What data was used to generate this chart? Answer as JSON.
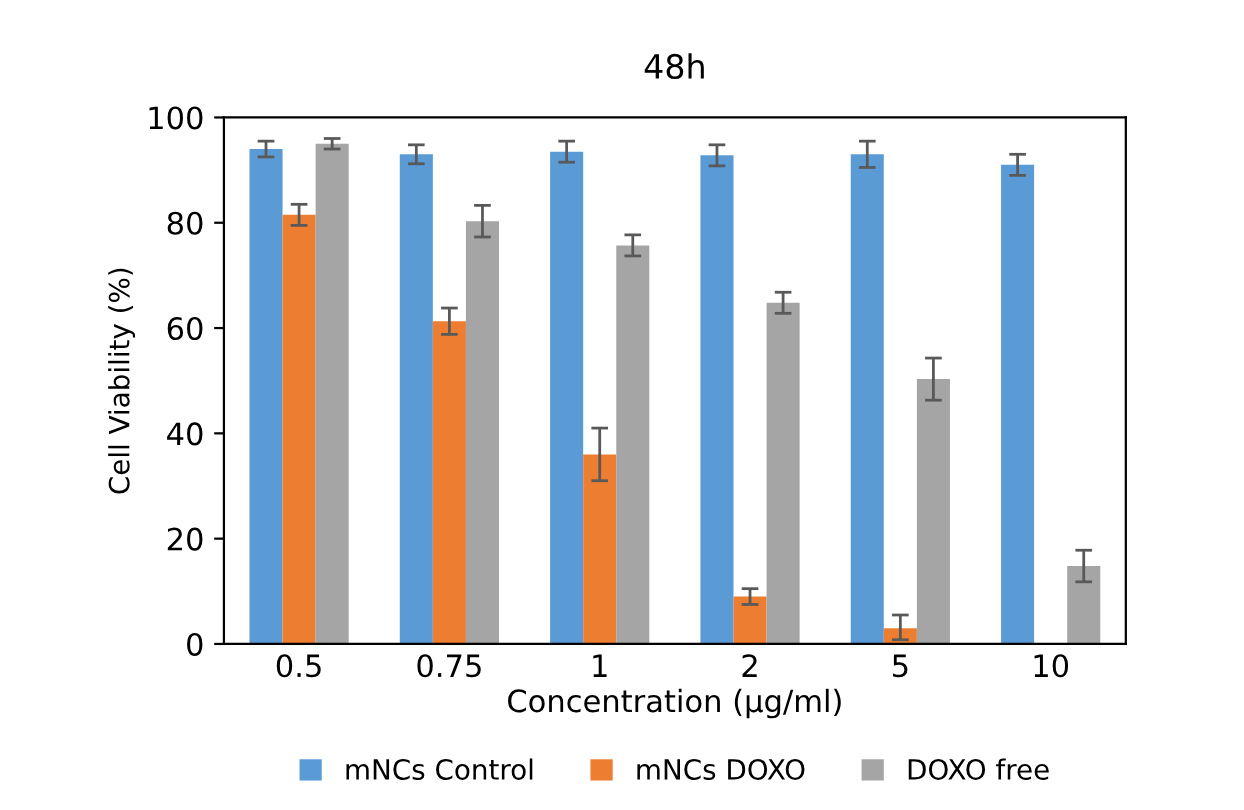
{
  "chart_data": {
    "type": "bar",
    "title": "48h",
    "xlabel": "Concentration (µg/ml)",
    "ylabel": "Cell Viability (%)",
    "categories": [
      "0.5",
      "0.75",
      "1",
      "2",
      "5",
      "10"
    ],
    "series": [
      {
        "name": "mNCs Control",
        "color": "#5b9bd5",
        "values": [
          94,
          93,
          93.5,
          92.8,
          93,
          91
        ],
        "errors": [
          1.5,
          1.8,
          2,
          2,
          2.5,
          2
        ]
      },
      {
        "name": "mNCs DOXO",
        "color": "#ed7d31",
        "values": [
          81.5,
          61.3,
          36,
          9,
          3,
          null
        ],
        "errors": [
          2,
          2.5,
          5,
          1.5,
          [
            2.2,
            2.5
          ],
          null
        ]
      },
      {
        "name": "DOXO free",
        "color": "#a5a5a5",
        "values": [
          95,
          80.3,
          75.7,
          64.8,
          50.3,
          14.8
        ],
        "errors": [
          1,
          3,
          2,
          2,
          4,
          3
        ]
      }
    ],
    "ylim": [
      0,
      100
    ],
    "yticks": [
      0,
      20,
      40,
      60,
      80,
      100
    ],
    "grid": false,
    "legend": "bottom"
  }
}
